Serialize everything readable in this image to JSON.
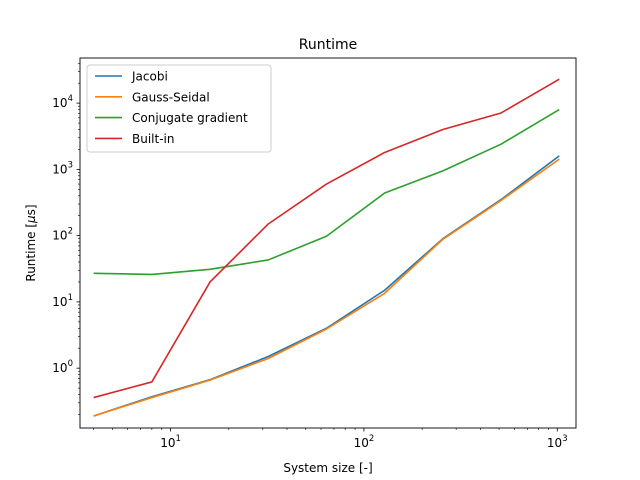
{
  "chart_data": {
    "type": "line",
    "title": "Runtime",
    "xlabel": "System size [-]",
    "ylabel_main": "Runtime [",
    "ylabel_mu": "μ",
    "ylabel_end": "s]",
    "xscale": "log",
    "yscale": "log",
    "xlim": [
      3.4,
      1250
    ],
    "ylim": [
      0.125,
      48000
    ],
    "grid": false,
    "legend_position": "top-left",
    "x_ticks": [
      {
        "value": 10,
        "base": "10",
        "exp": "1"
      },
      {
        "value": 100,
        "base": "10",
        "exp": "2"
      },
      {
        "value": 1000,
        "base": "10",
        "exp": "3"
      }
    ],
    "y_ticks": [
      {
        "value": 1,
        "base": "10",
        "exp": "0"
      },
      {
        "value": 10,
        "base": "10",
        "exp": "1"
      },
      {
        "value": 100,
        "base": "10",
        "exp": "2"
      },
      {
        "value": 1000,
        "base": "10",
        "exp": "3"
      },
      {
        "value": 10000,
        "base": "10",
        "exp": "4"
      }
    ],
    "x": [
      4,
      8,
      16,
      32,
      64,
      128,
      256,
      512,
      1024
    ],
    "series": [
      {
        "name": "Jacobi",
        "color": "#1f77b4",
        "values": [
          0.19,
          0.37,
          0.67,
          1.5,
          4.0,
          15,
          90,
          350,
          1600
        ]
      },
      {
        "name": "Gauss-Seidal",
        "color": "#ff7f0e",
        "values": [
          0.19,
          0.36,
          0.66,
          1.4,
          3.9,
          13.5,
          88,
          340,
          1430
        ]
      },
      {
        "name": "Conjugate gradient",
        "color": "#2ca02c",
        "values": [
          27,
          26,
          31,
          43,
          98,
          440,
          950,
          2400,
          8000
        ]
      },
      {
        "name": "Built-in",
        "color": "#d62728",
        "values": [
          0.36,
          0.62,
          20,
          150,
          600,
          1800,
          4000,
          7100,
          23000
        ]
      }
    ]
  }
}
